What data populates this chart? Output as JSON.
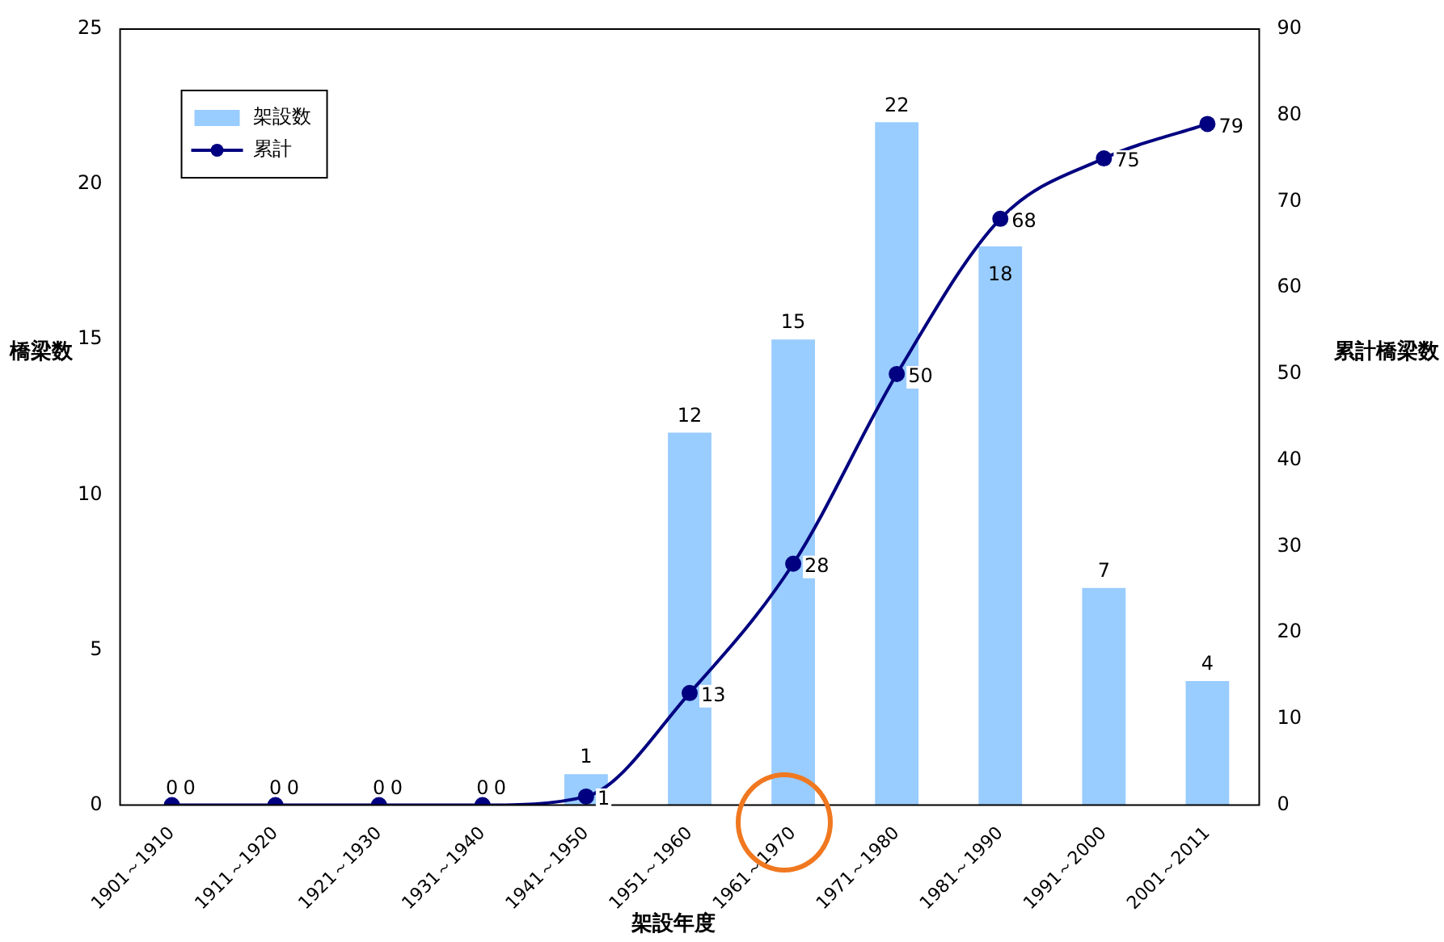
{
  "chart_data": {
    "type": "bar",
    "xlabel": "架設年度",
    "ylabel": "橋梁数",
    "y2label": "累計橋梁数",
    "categories": [
      "1901～1910",
      "1911～1920",
      "1921～1930",
      "1931～1940",
      "1941～1950",
      "1951～1960",
      "1961～1970",
      "1971～1980",
      "1981～1990",
      "1991～2000",
      "2001～2011"
    ],
    "series": [
      {
        "name": "架設数",
        "color": "#99ccff",
        "values": [
          0,
          0,
          0,
          0,
          1,
          12,
          15,
          22,
          18,
          7,
          4
        ]
      },
      {
        "name": "累計",
        "type": "line",
        "axis": "y2",
        "color": "#000080",
        "marker": "circle",
        "values": [
          0,
          0,
          0,
          0,
          1,
          13,
          28,
          50,
          68,
          75,
          79
        ]
      }
    ],
    "ylim": [
      0,
      25
    ],
    "yticks": [
      0,
      5,
      10,
      15,
      20,
      25
    ],
    "y2lim": [
      0,
      90
    ],
    "y2ticks": [
      0,
      10,
      20,
      30,
      40,
      50,
      60,
      70,
      80,
      90
    ],
    "data_labels": true,
    "legend": "top left",
    "grid": false
  }
}
